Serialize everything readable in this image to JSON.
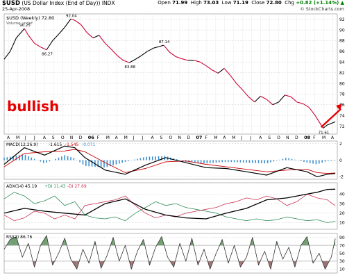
{
  "header": {
    "symbol": "$USD",
    "name": "(US Dollar Index (End of Day))",
    "exchange": "INDX",
    "date": "25-Apr-2008",
    "open_label": "Open",
    "open": "71.99",
    "high_label": "High",
    "high": "73.03",
    "low_label": "Low",
    "low": "71.19",
    "close_label": "Close",
    "close": "72.80",
    "chg_label": "Chg",
    "chg": "+0.82 (+1.14%)",
    "chg_arrow": "▲",
    "credit": "© StockCharts.com"
  },
  "annotation": {
    "text": "bullish",
    "color": "#e60000",
    "arrow_color": "#e60000"
  },
  "colors": {
    "price_line": "#000000",
    "price_down": "#cc0033",
    "macd": "#000000",
    "signal": "#cc0000",
    "hist": "#3a8fd0",
    "adx": "#000000",
    "plus_di": "#2e8b57",
    "minus_di": "#cc3355",
    "rsi": "#333333",
    "rsi_fill_high": "#5a8f5a",
    "rsi_fill_low": "#8f5a5a",
    "grid": "#cccccc"
  },
  "chart_data": [
    {
      "type": "line",
      "panel": "price",
      "legend": "$USD (Weekly) 72.80",
      "legend_sub": "Volume undef",
      "ylim": [
        70.5,
        93
      ],
      "yticks": [
        72,
        74,
        76,
        78,
        80,
        82,
        84,
        86,
        88,
        90,
        92
      ],
      "x_labels": [
        "A",
        "M",
        "J",
        "J",
        "A",
        "S",
        "O",
        "N",
        "D",
        "06",
        "F",
        "M",
        "A",
        "M",
        "J",
        "J",
        "A",
        "S",
        "O",
        "N",
        "D",
        "07",
        "F",
        "M",
        "A",
        "M",
        "J",
        "J",
        "A",
        "S",
        "O",
        "N",
        "D",
        "08",
        "F",
        "M",
        "A"
      ],
      "annotations": [
        {
          "label": "90.25",
          "x": 10,
          "y": 90.25
        },
        {
          "label": "86.27",
          "x": 21,
          "y": 86.27
        },
        {
          "label": "92.04",
          "x": 33,
          "y": 92.04
        },
        {
          "label": "83.88",
          "x": 62,
          "y": 83.88
        },
        {
          "label": "87.14",
          "x": 79,
          "y": 87.14
        },
        {
          "label": "71.61",
          "x": 158,
          "y": 71.61
        }
      ],
      "x": [
        0,
        3,
        6,
        9,
        10,
        12,
        15,
        18,
        21,
        24,
        27,
        30,
        33,
        35,
        38,
        41,
        44,
        47,
        50,
        53,
        56,
        59,
        62,
        65,
        68,
        71,
        74,
        77,
        79,
        82,
        85,
        88,
        91,
        94,
        97,
        100,
        103,
        106,
        109,
        112,
        115,
        118,
        121,
        124,
        127,
        130,
        133,
        136,
        139,
        142,
        145,
        148,
        151,
        154,
        156,
        158,
        160,
        162,
        164
      ],
      "values": [
        84.5,
        86,
        88.5,
        89.8,
        90.25,
        89,
        87.5,
        86.8,
        86.27,
        88,
        89.2,
        90.5,
        92.04,
        91.8,
        91,
        89.5,
        88.5,
        89,
        87.5,
        86.4,
        85.2,
        84.3,
        83.88,
        84.5,
        85.2,
        86,
        86.6,
        86.9,
        87.14,
        85.8,
        85,
        84.6,
        84.3,
        84.3,
        84,
        83.3,
        82.5,
        81.9,
        82.8,
        81.5,
        80,
        78.8,
        77.5,
        76.5,
        77.6,
        77,
        76,
        76.5,
        77.8,
        77.5,
        76.5,
        76.2,
        75.5,
        74,
        72.8,
        71.61,
        72.2,
        72.5,
        72.8
      ]
    },
    {
      "type": "line",
      "panel": "macd",
      "legend": "MACD(12,26,9)",
      "legend_values": [
        "-1.615",
        "-1.545",
        "-0.071"
      ],
      "ylim": [
        -2.3,
        2.3
      ],
      "yticks": [
        -2,
        0,
        2
      ],
      "series": [
        {
          "name": "MACD(12,26,9)",
          "x": [
            0,
            10,
            20,
            30,
            35,
            40,
            50,
            60,
            70,
            80,
            90,
            100,
            110,
            120,
            130,
            140,
            150,
            155,
            160,
            164
          ],
          "values": [
            -0.5,
            1.5,
            0.6,
            1.7,
            1.5,
            0.3,
            -1.2,
            -1.7,
            -0.6,
            0.3,
            -0.3,
            -0.9,
            -1.0,
            -1.4,
            -1.8,
            -0.9,
            -1.4,
            -2.0,
            -1.7,
            -1.6
          ]
        },
        {
          "name": "Signal",
          "x": [
            0,
            10,
            20,
            30,
            35,
            40,
            50,
            60,
            70,
            80,
            90,
            100,
            110,
            120,
            130,
            140,
            150,
            155,
            160,
            164
          ],
          "values": [
            -0.8,
            0.8,
            1.0,
            1.1,
            1.3,
            1.0,
            -0.3,
            -1.5,
            -1.0,
            -0.2,
            -0.1,
            -0.5,
            -0.8,
            -1.1,
            -1.4,
            -1.2,
            -1.1,
            -1.5,
            -1.6,
            -1.55
          ]
        }
      ]
    },
    {
      "type": "line",
      "panel": "adx",
      "legend": "ADX(14) 45.19",
      "legend_values": [
        "+DI 11.43",
        "-DI 27.69"
      ],
      "ylim": [
        3,
        52
      ],
      "yticks": [
        10,
        20,
        30,
        40
      ],
      "series": [
        {
          "name": "ADX(14)",
          "x": [
            0,
            10,
            20,
            30,
            40,
            50,
            60,
            70,
            80,
            90,
            100,
            110,
            120,
            130,
            140,
            150,
            155,
            160,
            164
          ],
          "values": [
            20,
            25,
            22,
            20,
            18,
            30,
            35,
            24,
            18,
            15,
            14,
            20,
            25,
            34,
            36,
            40,
            42,
            45,
            45.19
          ]
        },
        {
          "name": "+DI",
          "x": [
            0,
            5,
            10,
            15,
            20,
            25,
            30,
            35,
            40,
            45,
            50,
            55,
            60,
            65,
            70,
            75,
            80,
            85,
            90,
            95,
            100,
            105,
            110,
            115,
            120,
            125,
            130,
            135,
            140,
            145,
            150,
            155,
            160,
            164
          ],
          "values": [
            35,
            42,
            38,
            30,
            33,
            38,
            28,
            32,
            18,
            15,
            14,
            16,
            12,
            20,
            26,
            32,
            28,
            30,
            26,
            24,
            22,
            20,
            16,
            14,
            12,
            14,
            12,
            13,
            16,
            14,
            12,
            13,
            10,
            11.43
          ]
        },
        {
          "name": "-DI",
          "x": [
            0,
            5,
            10,
            15,
            20,
            25,
            30,
            35,
            40,
            45,
            50,
            55,
            60,
            65,
            70,
            75,
            80,
            85,
            90,
            95,
            100,
            105,
            110,
            115,
            120,
            125,
            130,
            135,
            140,
            145,
            150,
            155,
            160,
            164
          ],
          "values": [
            18,
            12,
            15,
            22,
            20,
            14,
            18,
            14,
            28,
            30,
            32,
            34,
            38,
            28,
            20,
            15,
            18,
            16,
            20,
            22,
            24,
            26,
            30,
            32,
            36,
            34,
            38,
            35,
            28,
            32,
            40,
            36,
            34,
            27.69
          ]
        }
      ]
    },
    {
      "type": "line",
      "panel": "rsi",
      "legend": "RSI(2) 86.76",
      "ylim": [
        0,
        100
      ],
      "yticks": [
        10,
        30,
        50,
        70,
        90
      ],
      "overbought": 70,
      "oversold": 30,
      "x": [
        0,
        3,
        6,
        9,
        12,
        15,
        18,
        21,
        24,
        27,
        30,
        33,
        36,
        39,
        42,
        45,
        48,
        51,
        54,
        57,
        60,
        63,
        66,
        69,
        72,
        75,
        78,
        81,
        84,
        87,
        90,
        93,
        96,
        99,
        102,
        105,
        108,
        111,
        114,
        117,
        120,
        123,
        126,
        129,
        132,
        135,
        138,
        141,
        144,
        147,
        150,
        153,
        156,
        159,
        162,
        164
      ],
      "values": [
        60,
        85,
        92,
        40,
        75,
        15,
        70,
        95,
        20,
        50,
        88,
        35,
        10,
        60,
        25,
        80,
        12,
        45,
        90,
        30,
        70,
        10,
        55,
        85,
        20,
        65,
        92,
        40,
        15,
        75,
        30,
        88,
        20,
        60,
        10,
        50,
        85,
        25,
        70,
        15,
        40,
        90,
        20,
        55,
        10,
        80,
        35,
        65,
        15,
        70,
        92,
        25,
        50,
        10,
        40,
        86.76
      ]
    }
  ]
}
